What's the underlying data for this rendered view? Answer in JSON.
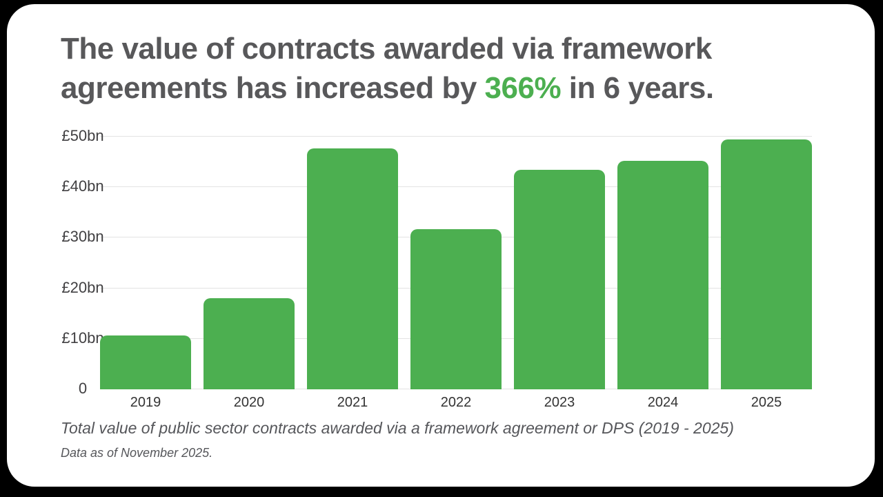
{
  "title": {
    "line1": "The value of contracts awarded via framework",
    "line2_before": "agreements has increased by ",
    "line2_highlight": "366%",
    "line2_after": " in 6 years."
  },
  "chart_data": {
    "type": "bar",
    "categories": [
      "2019",
      "2020",
      "2021",
      "2022",
      "2023",
      "2024",
      "2025"
    ],
    "values": [
      10.6,
      18.1,
      47.7,
      31.7,
      43.4,
      45.2,
      49.4
    ],
    "unit": "GBP billions",
    "title": "Total value of public sector contracts awarded via a framework agreement or DPS (2019 - 2025)",
    "xlabel": "",
    "ylabel": "",
    "ylim": [
      0,
      50
    ],
    "grid": true,
    "legend": false,
    "bar_color": "#4caf50",
    "yticks": [
      {
        "label": "£50bn",
        "value": 50
      },
      {
        "label": "£40bn",
        "value": 40
      },
      {
        "label": "£30bn",
        "value": 30
      },
      {
        "label": "£20bn",
        "value": 20
      },
      {
        "label": "£10bn",
        "value": 10
      },
      {
        "label": "0",
        "value": 0
      }
    ]
  },
  "captions": {
    "source_line": "Total value of public sector contracts awarded via a framework agreement or DPS (2019 - 2025)",
    "date_line": "Data as of November 2025."
  },
  "colors": {
    "accent_green": "#4caf50",
    "title_gray": "#58585a",
    "background": "#000000",
    "card": "#ffffff",
    "gridline": "#e3e3e3"
  }
}
